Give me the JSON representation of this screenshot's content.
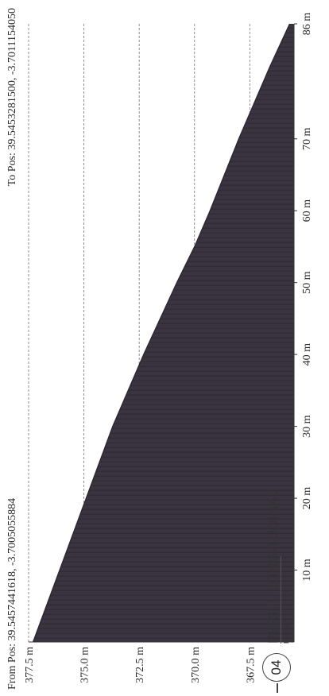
{
  "header": {
    "from_pos": "From Pos: 39.5457441618, -3.7005055884",
    "to_pos": "To Pos: 39.5453281500, -3.7011154050"
  },
  "caption": {
    "number": "04",
    "title": "PERFIL LONGITUDINAL",
    "scale_label": "ESCALA :",
    "scale_value": "SEM"
  },
  "colors": {
    "fill": "#3a3440",
    "grid": "#777777",
    "axis": "#333333"
  },
  "chart_data": {
    "type": "area",
    "title": "",
    "xlabel": "",
    "ylabel": "",
    "x": [
      0,
      10,
      20,
      30,
      40,
      50,
      55,
      60,
      70,
      80,
      86
    ],
    "y": [
      377.3,
      376.1,
      374.9,
      373.7,
      372.3,
      370.8,
      370.0,
      369.3,
      368.0,
      366.6,
      365.7
    ],
    "xlim": [
      0,
      86
    ],
    "ylim": [
      365.5,
      377.5
    ],
    "x_tick_labels": [
      "10 m",
      "20 m",
      "30 m",
      "40 m",
      "50 m",
      "60 m",
      "70 m",
      "86 m"
    ],
    "x_tick_values": [
      10,
      20,
      30,
      40,
      50,
      60,
      70,
      86
    ],
    "y_tick_labels": [
      "377.5 m",
      "375.0 m",
      "372.5 m",
      "370.0 m",
      "367.5 m"
    ],
    "y_tick_values": [
      377.5,
      375.0,
      372.5,
      370.0,
      367.5
    ],
    "grid": true,
    "legend": "none"
  }
}
